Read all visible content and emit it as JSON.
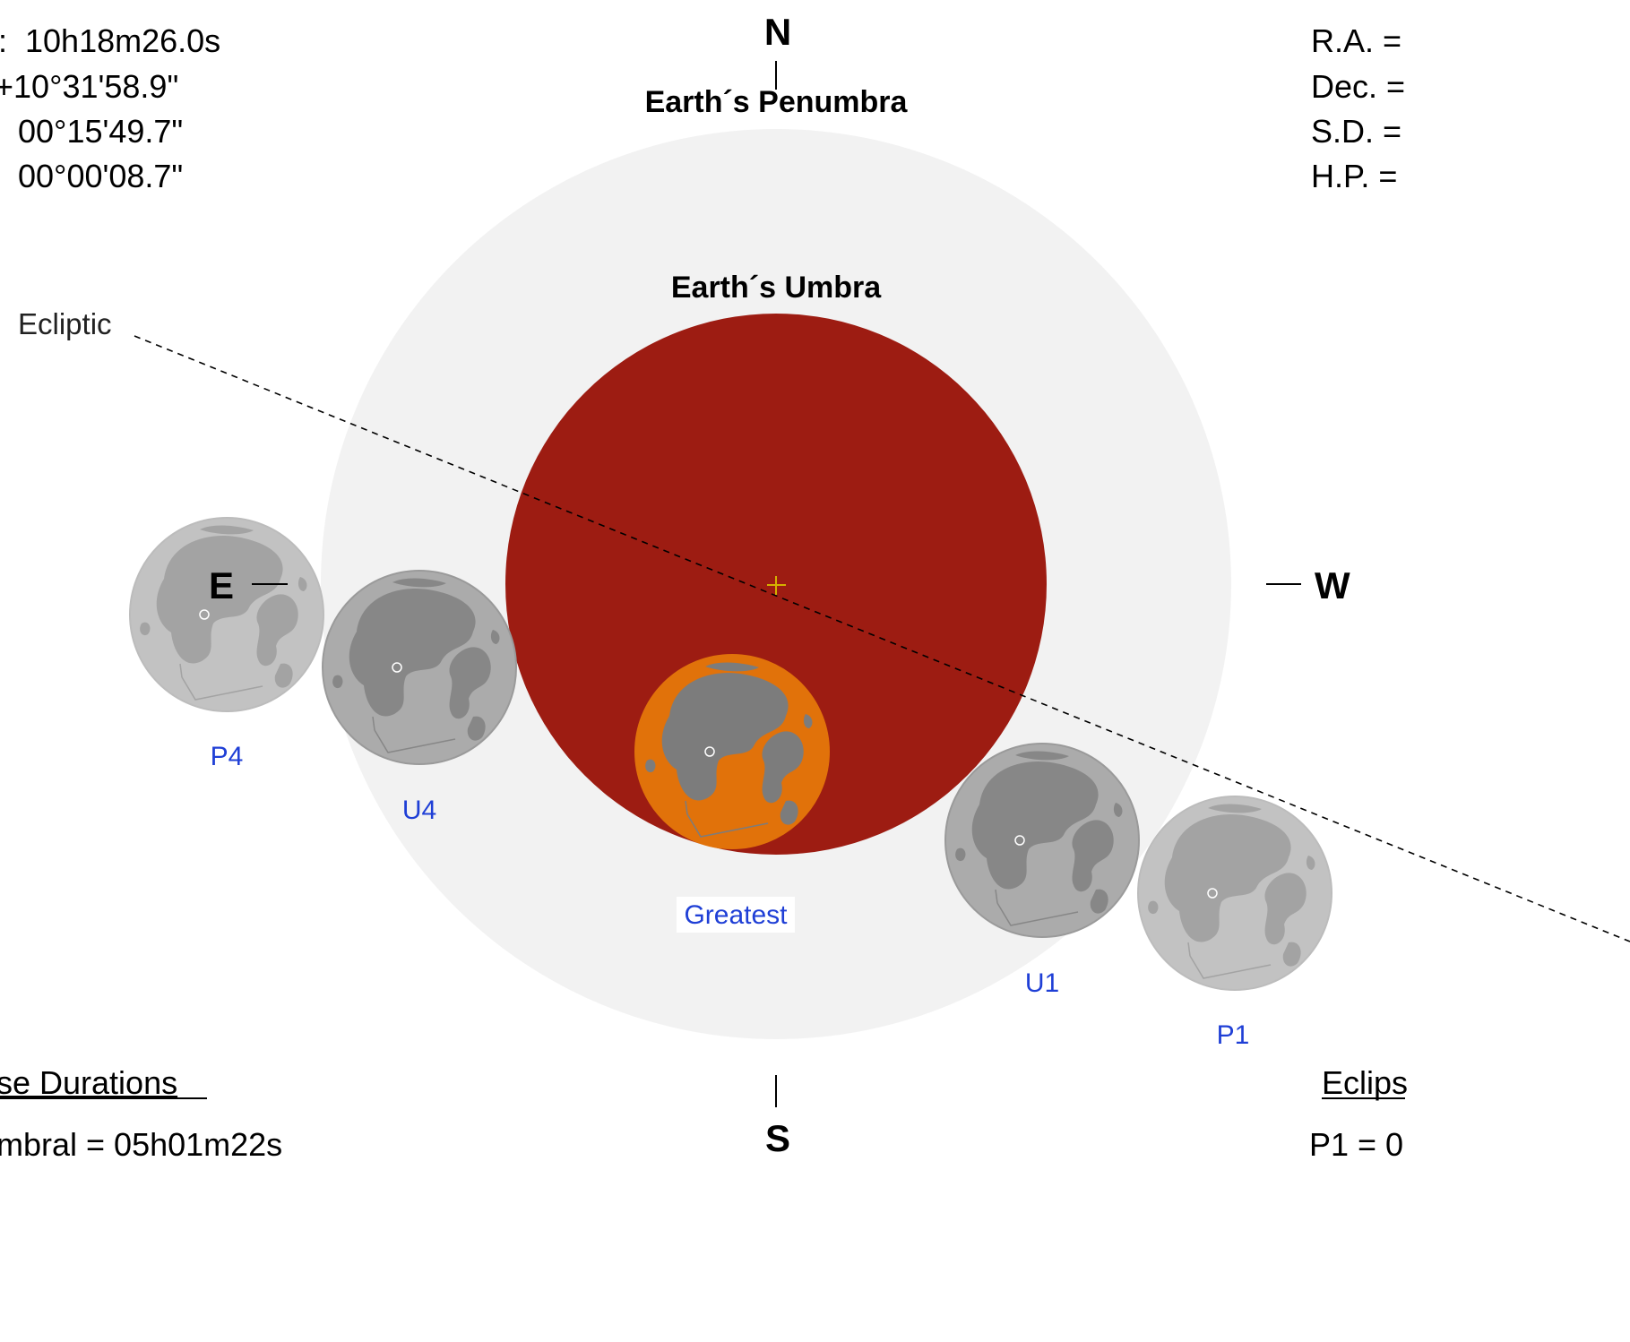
{
  "compass": {
    "north": "N",
    "south": "S",
    "east": "E",
    "west": "W"
  },
  "labels": {
    "penumbra": "Earth´s Penumbra",
    "umbra": "Earth´s Umbra",
    "ecliptic": "Ecliptic"
  },
  "shadow_info": {
    "ra": "10h18m26.0s",
    "dec": "+10°31'58.9\"",
    "sd": "00°15'49.7\"",
    "hp": "00°00'08.7\""
  },
  "moon_info": {
    "ra": "R.A. =",
    "dec": "Dec. =",
    "sd": "S.D. =",
    "hp": "H.P. ="
  },
  "durations": {
    "heading": "se Durations",
    "penumbral": "mbral = 05h01m22s"
  },
  "contacts": {
    "heading": "Eclips",
    "p1": "P1 = 0"
  },
  "moons": [
    {
      "name": "P4",
      "label": "P4",
      "fill": "#c2c2c2",
      "marks": "#a3a3a3",
      "edge": "#bcbcbc"
    },
    {
      "name": "U4",
      "label": "U4",
      "fill": "#ababab",
      "marks": "#878787",
      "edge": "#9a9a9a"
    },
    {
      "name": "Greatest",
      "label": "Greatest",
      "fill": "#e1720a",
      "marks": "#7c7c7c",
      "edge": "#e1720a"
    },
    {
      "name": "U1",
      "label": "U1",
      "fill": "#ababab",
      "marks": "#878787",
      "edge": "#9a9a9a"
    },
    {
      "name": "P1",
      "label": "P1",
      "fill": "#c2c2c2",
      "marks": "#a3a3a3",
      "edge": "#bcbcbc"
    }
  ],
  "colors": {
    "penumbra": "#f2f2f2",
    "umbra": "#9d1c12",
    "contact_label": "#1f3fd6",
    "center_cross": "#d4b000"
  }
}
